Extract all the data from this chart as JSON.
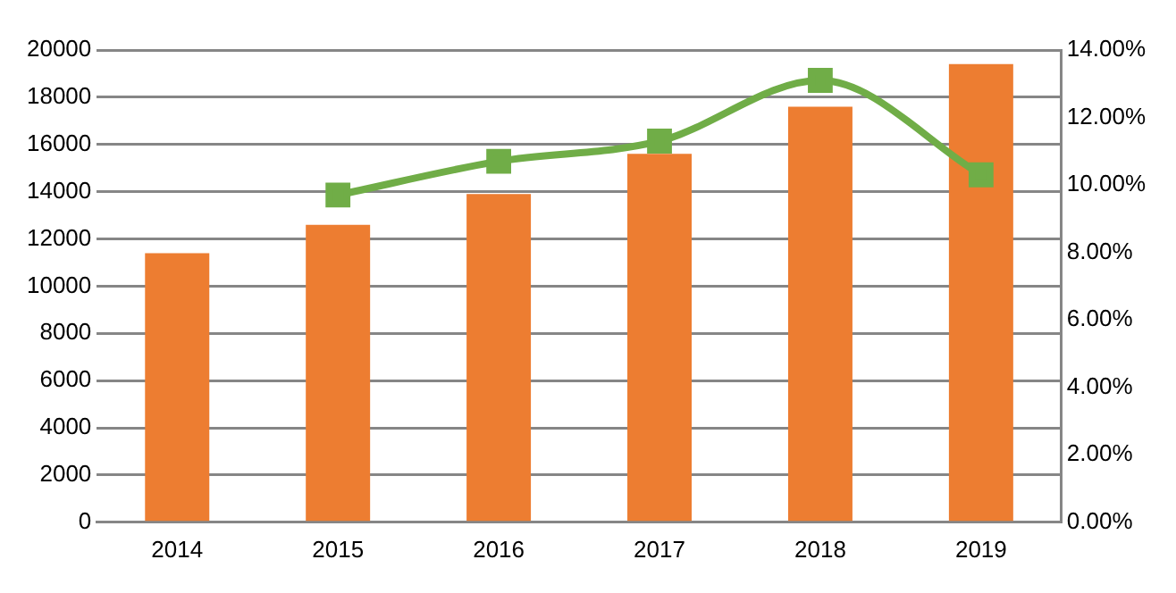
{
  "chart_data": {
    "type": "bar",
    "categories": [
      "2014",
      "2015",
      "2016",
      "2017",
      "2018",
      "2019"
    ],
    "series": [
      {
        "color": "#ed7d31",
        "values": [
          11400,
          12600,
          13900,
          15600,
          17600,
          19400
        ]
      },
      {
        "type": "line",
        "axis": "y2",
        "color": "#70ad47",
        "marker": "square",
        "values": [
          null,
          9.7,
          10.7,
          11.3,
          13.1,
          10.3
        ]
      }
    ],
    "ylim": [
      0,
      20000
    ],
    "yticks": [
      0,
      2000,
      4000,
      6000,
      8000,
      10000,
      12000,
      14000,
      16000,
      18000,
      20000
    ],
    "y2lim": [
      0,
      14
    ],
    "y2ticks": [
      {
        "value": 0,
        "label": "0.00%"
      },
      {
        "value": 2,
        "label": "2.00%"
      },
      {
        "value": 4,
        "label": "4.00%"
      },
      {
        "value": 6,
        "label": "6.00%"
      },
      {
        "value": 8,
        "label": "8.00%"
      },
      {
        "value": 10,
        "label": "10.00%"
      },
      {
        "value": 12,
        "label": "12.00%"
      },
      {
        "value": 14,
        "label": "14.00%"
      }
    ],
    "grid": "y",
    "legend": false
  }
}
